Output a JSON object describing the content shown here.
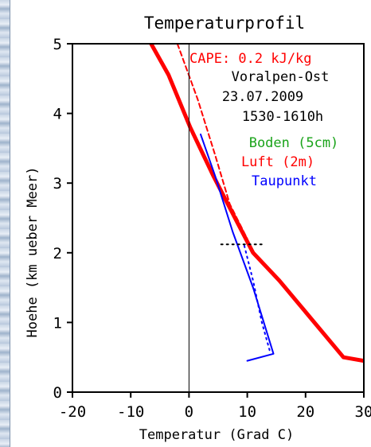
{
  "chart_data": {
    "type": "line",
    "title": "Temperaturprofil",
    "xlabel": "Temperatur (Grad C)",
    "ylabel": "Hoehe (km ueber Meer)",
    "xlim": [
      -20,
      30
    ],
    "ylim": [
      0,
      5
    ],
    "xticks": [
      "-20",
      "-10",
      "0",
      "10",
      "20",
      "30"
    ],
    "yticks": [
      "0",
      "1",
      "2",
      "3",
      "4",
      "5"
    ],
    "grid": false,
    "annotations": {
      "cape": "CAPE:   0.2 kJ/kg",
      "region": "Voralpen-Ost",
      "date": "23.07.2009",
      "time": "1530-1610h"
    },
    "legend": {
      "placement": "top-right",
      "entries": [
        {
          "label": "Boden (5cm)",
          "color": "#1aa31a"
        },
        {
          "label": "Luft (2m)",
          "color": "#ff0000"
        },
        {
          "label": "Taupunkt",
          "color": "#0000ff"
        }
      ]
    },
    "series": [
      {
        "name": "Luft (2m)",
        "color": "#ff0000",
        "style": "solid-thick",
        "points": [
          [
            -6.5,
            5.0
          ],
          [
            -3.5,
            4.55
          ],
          [
            0.2,
            3.8
          ],
          [
            4.2,
            3.1
          ],
          [
            8.2,
            2.45
          ],
          [
            11.0,
            2.0
          ],
          [
            15.5,
            1.6
          ],
          [
            20.5,
            1.1
          ],
          [
            26.5,
            0.5
          ],
          [
            30.0,
            0.45
          ]
        ]
      },
      {
        "name": "CAPE-Parcel",
        "color": "#ff0000",
        "style": "dashed",
        "points": [
          [
            -2.0,
            5.0
          ],
          [
            1.5,
            4.2
          ],
          [
            4.5,
            3.4
          ],
          [
            7.0,
            2.7
          ],
          [
            10.0,
            2.2
          ]
        ]
      },
      {
        "name": "Taupunkt",
        "color": "#0000ff",
        "style": "solid-thin",
        "points": [
          [
            2.0,
            3.7
          ],
          [
            4.5,
            3.1
          ],
          [
            7.5,
            2.3
          ],
          [
            11.0,
            1.5
          ],
          [
            14.5,
            0.55
          ],
          [
            10.0,
            0.45
          ]
        ]
      },
      {
        "name": "Taupunkt-Parcel",
        "color": "#0000ff",
        "style": "dotted",
        "points": [
          [
            9.5,
            2.1
          ],
          [
            11.0,
            1.6
          ],
          [
            12.5,
            1.0
          ],
          [
            14.0,
            0.55
          ]
        ]
      },
      {
        "name": "Niveau",
        "color": "#000000",
        "style": "dotted",
        "points": [
          [
            5.5,
            2.12
          ],
          [
            13.0,
            2.12
          ]
        ]
      }
    ]
  }
}
